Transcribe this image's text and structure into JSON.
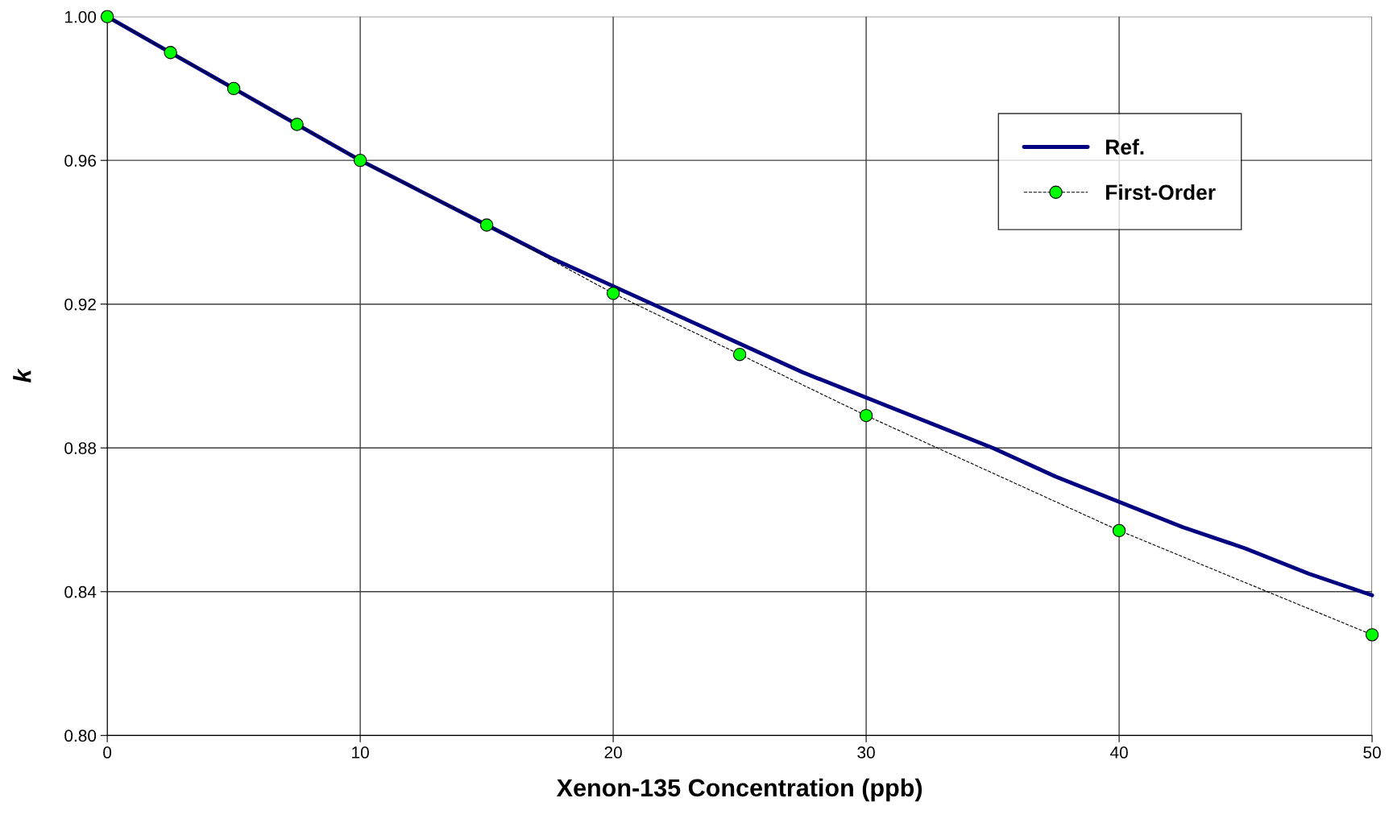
{
  "chart_data": {
    "type": "line",
    "xlabel": "Xenon-135 Concentration (ppb)",
    "ylabel": "k",
    "xlim": [
      0,
      50
    ],
    "xticks": [
      0,
      10,
      20,
      30,
      40,
      50
    ],
    "ylim": [
      0.8,
      1.0
    ],
    "yticks": [
      {
        "value": 0.8,
        "label": "0.80"
      },
      0.84,
      0.88,
      0.92,
      0.96,
      {
        "value": 1.0,
        "label": "1.00"
      }
    ],
    "grid": true,
    "legend": "top right",
    "series": [
      {
        "name": "Ref.",
        "color": "#000080",
        "marker": "none",
        "line_style": "solid",
        "x": [
          0,
          2.5,
          5,
          7.5,
          10,
          12.5,
          15,
          17.5,
          20,
          22.5,
          25,
          27.5,
          30,
          32.5,
          35,
          37.5,
          40,
          42.5,
          45,
          47.5,
          50
        ],
        "values": [
          1.0,
          0.99,
          0.98,
          0.97,
          0.96,
          0.951,
          0.942,
          0.933,
          0.925,
          0.917,
          0.909,
          0.901,
          0.894,
          0.887,
          0.88,
          0.872,
          0.865,
          0.858,
          0.852,
          0.845,
          0.839
        ]
      },
      {
        "name": "First-Order",
        "color": "#00ff00",
        "marker": "circle",
        "line_style": "dashed",
        "x": [
          0,
          2.5,
          5,
          7.5,
          10,
          15,
          20,
          25,
          30,
          40,
          50
        ],
        "values": [
          1.0,
          0.99,
          0.98,
          0.97,
          0.96,
          0.942,
          0.923,
          0.906,
          0.889,
          0.857,
          0.828
        ]
      }
    ]
  }
}
